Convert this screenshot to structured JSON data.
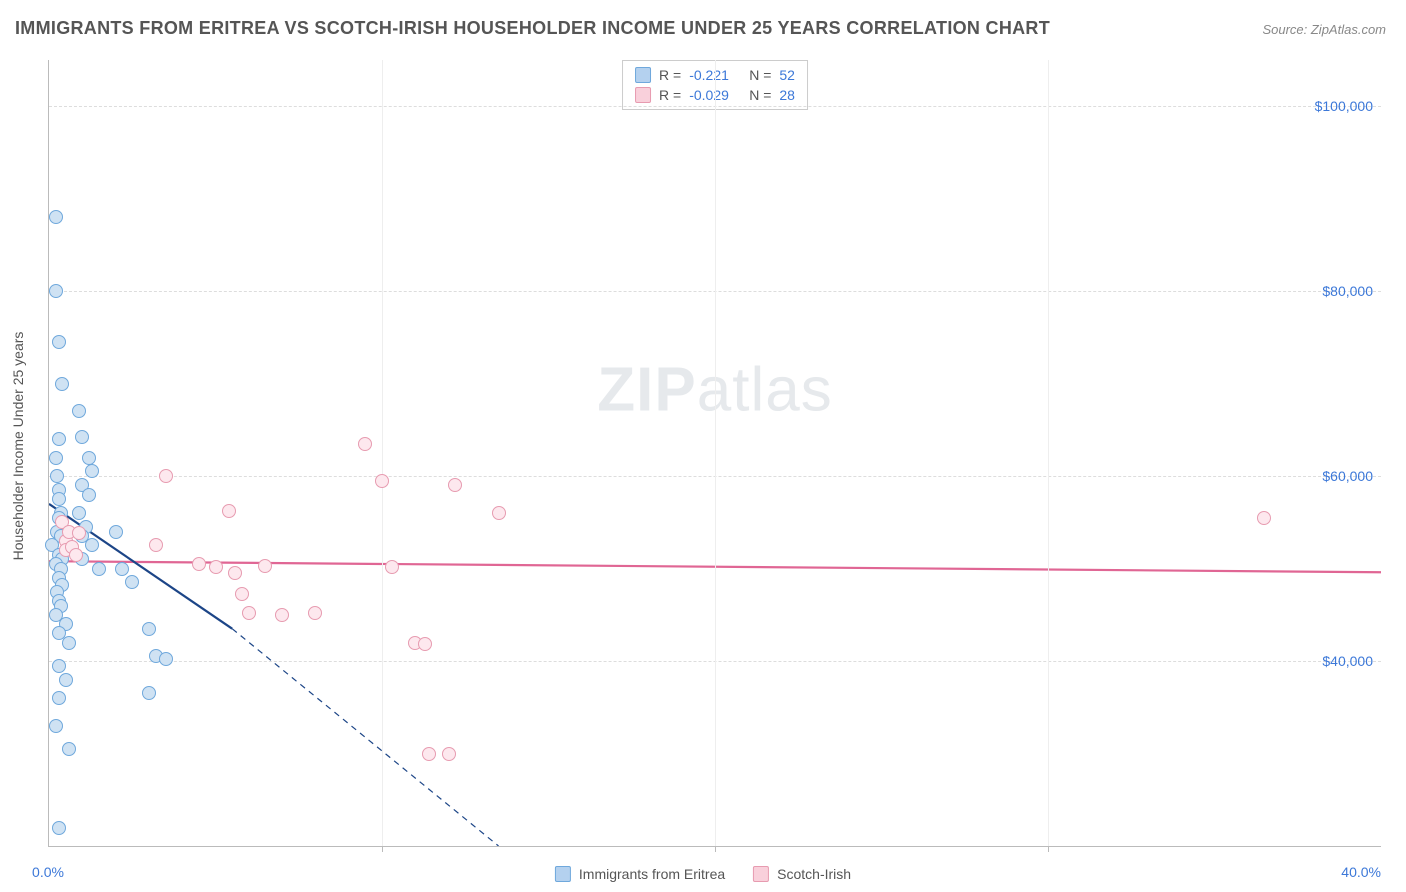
{
  "title": "IMMIGRANTS FROM ERITREA VS SCOTCH-IRISH HOUSEHOLDER INCOME UNDER 25 YEARS CORRELATION CHART",
  "source": "Source: ZipAtlas.com",
  "watermark_a": "ZIP",
  "watermark_b": "atlas",
  "chart": {
    "type": "scatter",
    "xlim": [
      0,
      40
    ],
    "ylim": [
      20000,
      105000
    ],
    "x_tick_labels": {
      "min": "0.0%",
      "max": "40.0%"
    },
    "x_grid_positions": [
      10,
      20,
      30,
      40
    ],
    "y_ticks": [
      {
        "value": 40000,
        "label": "$40,000"
      },
      {
        "value": 60000,
        "label": "$60,000"
      },
      {
        "value": 80000,
        "label": "$80,000"
      },
      {
        "value": 100000,
        "label": "$100,000"
      }
    ],
    "y_axis_title": "Householder Income Under 25 years",
    "grid_dash_color": "#dddddd",
    "axis_line_color": "#bbbbbb",
    "tick_label_color": "#3c78d8",
    "marker_radius": 7,
    "marker_stroke_width": 1.5,
    "series": [
      {
        "id": "eritrea",
        "label": "Immigrants from Eritrea",
        "fill": "#cfe2f3",
        "stroke": "#6fa8dc",
        "swatch_fill": "#b4d1ef",
        "swatch_stroke": "#6fa8dc",
        "R": "-0.221",
        "N": "52",
        "regression": {
          "x1": 0,
          "y1": 57000,
          "x2": 5.5,
          "y2": 43500,
          "x2_ext": 13.5,
          "y2_ext": 20000,
          "stroke": "#1c4587",
          "stroke_width": 2.2
        },
        "points": [
          [
            0.2,
            88000
          ],
          [
            0.2,
            80000
          ],
          [
            0.3,
            74500
          ],
          [
            0.4,
            70000
          ],
          [
            0.3,
            64000
          ],
          [
            0.2,
            62000
          ],
          [
            0.25,
            60000
          ],
          [
            0.3,
            58500
          ],
          [
            0.3,
            57500
          ],
          [
            0.35,
            56000
          ],
          [
            0.3,
            55500
          ],
          [
            0.25,
            54000
          ],
          [
            0.35,
            53500
          ],
          [
            0.1,
            52500
          ],
          [
            0.3,
            51500
          ],
          [
            0.4,
            51000
          ],
          [
            0.2,
            50500
          ],
          [
            0.35,
            50000
          ],
          [
            0.3,
            49000
          ],
          [
            0.4,
            48200
          ],
          [
            0.25,
            47500
          ],
          [
            0.3,
            46500
          ],
          [
            0.35,
            46000
          ],
          [
            0.2,
            45000
          ],
          [
            0.5,
            44000
          ],
          [
            0.3,
            43000
          ],
          [
            0.6,
            42000
          ],
          [
            0.3,
            39500
          ],
          [
            0.5,
            38000
          ],
          [
            0.3,
            36000
          ],
          [
            0.2,
            33000
          ],
          [
            0.6,
            30500
          ],
          [
            0.3,
            22000
          ],
          [
            0.9,
            67000
          ],
          [
            1.0,
            64200
          ],
          [
            1.2,
            62000
          ],
          [
            1.3,
            60500
          ],
          [
            1.0,
            59000
          ],
          [
            1.2,
            58000
          ],
          [
            0.9,
            56000
          ],
          [
            1.1,
            54500
          ],
          [
            1.0,
            53500
          ],
          [
            1.3,
            52500
          ],
          [
            1.0,
            51000
          ],
          [
            1.5,
            50000
          ],
          [
            2.0,
            54000
          ],
          [
            2.2,
            50000
          ],
          [
            2.5,
            48500
          ],
          [
            3.0,
            43500
          ],
          [
            3.2,
            40500
          ],
          [
            3.5,
            40200
          ],
          [
            3.0,
            36500
          ]
        ]
      },
      {
        "id": "scotch-irish",
        "label": "Scotch-Irish",
        "fill": "#fde8ee",
        "stroke": "#e79bb0",
        "swatch_fill": "#f9d0db",
        "swatch_stroke": "#e79bb0",
        "R": "-0.029",
        "N": "28",
        "regression": {
          "x1": 0,
          "y1": 50800,
          "x2": 40,
          "y2": 49600,
          "stroke": "#e06694",
          "stroke_width": 2.2
        },
        "points": [
          [
            0.4,
            55000
          ],
          [
            0.5,
            53000
          ],
          [
            0.5,
            52000
          ],
          [
            0.6,
            54000
          ],
          [
            0.7,
            52300
          ],
          [
            0.8,
            51500
          ],
          [
            0.9,
            53800
          ],
          [
            3.2,
            52500
          ],
          [
            3.5,
            60000
          ],
          [
            4.5,
            50500
          ],
          [
            5.0,
            50200
          ],
          [
            5.4,
            56200
          ],
          [
            5.6,
            49500
          ],
          [
            5.8,
            47200
          ],
          [
            6.0,
            45200
          ],
          [
            6.5,
            50300
          ],
          [
            7.0,
            45000
          ],
          [
            8.0,
            45200
          ],
          [
            9.5,
            63500
          ],
          [
            10.0,
            59500
          ],
          [
            10.3,
            50200
          ],
          [
            11.0,
            42000
          ],
          [
            11.3,
            41800
          ],
          [
            12.2,
            59000
          ],
          [
            13.5,
            56000
          ],
          [
            11.4,
            30000
          ],
          [
            12.0,
            30000
          ],
          [
            36.5,
            55500
          ]
        ]
      }
    ]
  },
  "legend_top": {
    "R_label": "R =",
    "N_label": "N ="
  }
}
